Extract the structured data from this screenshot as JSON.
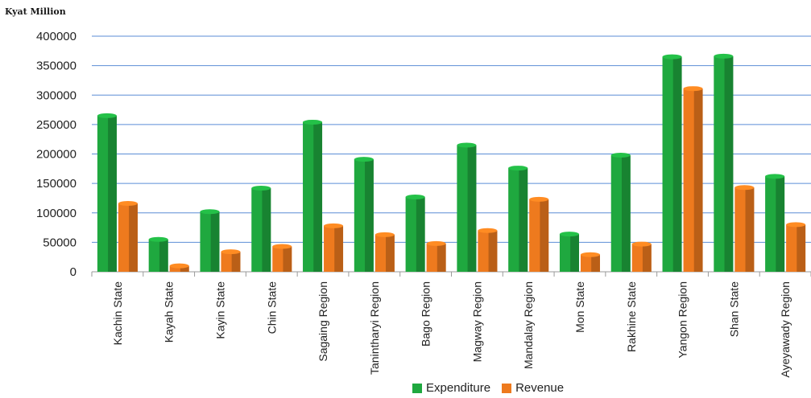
{
  "chart_data": {
    "type": "bar",
    "unit_label": "Kyat Million",
    "categories": [
      "Kachin State",
      "Kayah State",
      "Kayin State",
      "Chin State",
      "Sagaing Region",
      "Tanintharyi Region",
      "Bago Region",
      "Magway Region",
      "Mandalay Region",
      "Mon State",
      "Rakhine State",
      "Yangon Region",
      "Shan State",
      "Ayeyawady Region"
    ],
    "series": [
      {
        "name": "Expenditure",
        "color": "#1fa83f",
        "values": [
          265000,
          55000,
          102000,
          142000,
          254000,
          191000,
          127000,
          215000,
          176000,
          64000,
          198000,
          365000,
          366000,
          162000
        ]
      },
      {
        "name": "Revenue",
        "color": "#ee7a1e",
        "values": [
          116000,
          10000,
          34000,
          43000,
          78000,
          63000,
          48000,
          70000,
          123000,
          29000,
          47000,
          311000,
          143000,
          80000
        ]
      }
    ],
    "y_ticks": [
      0,
      50000,
      100000,
      150000,
      200000,
      250000,
      300000,
      350000,
      400000
    ],
    "tick_labels": [
      "0",
      "50000",
      "100000",
      "150000",
      "200000",
      "250000",
      "300000",
      "350000",
      "400000"
    ],
    "ylim": [
      0,
      400000
    ],
    "grid": true,
    "legend_position": "bottom"
  }
}
